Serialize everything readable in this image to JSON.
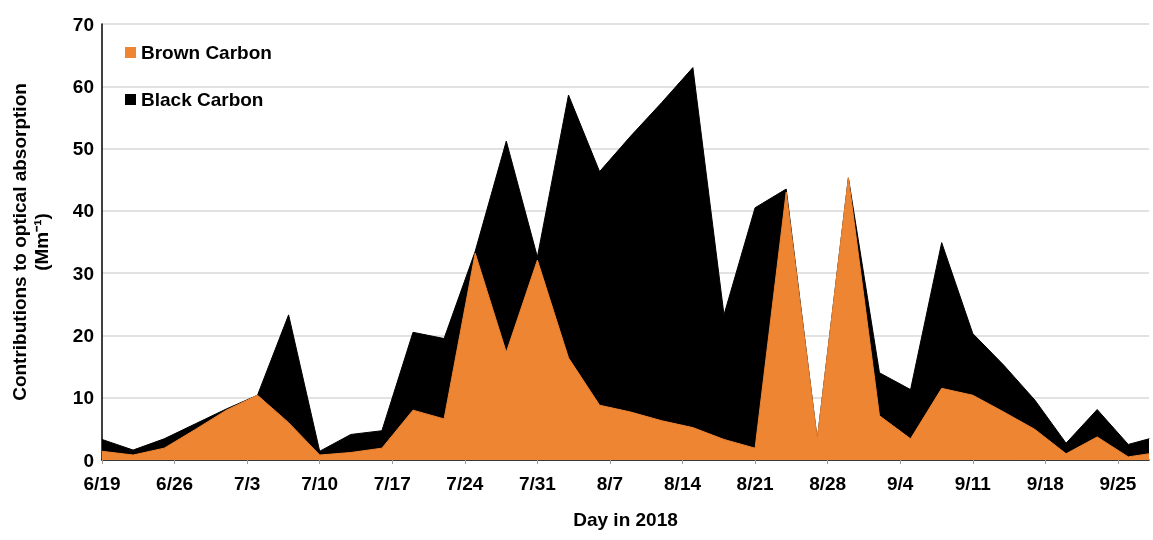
{
  "chart_data": {
    "type": "area",
    "xlabel": "Day in 2018",
    "ylabel": "Contributions to optical absorption\n(Mm⁻¹)",
    "x": [
      "--06-19",
      "--06-22",
      "--06-25",
      "--06-28",
      "--07-01",
      "--07-04",
      "--07-07",
      "--07-10",
      "--07-13",
      "--07-16",
      "--07-19",
      "--07-22",
      "--07-25",
      "--07-28",
      "--07-31",
      "--08-03",
      "--08-06",
      "--08-09",
      "--08-12",
      "--08-15",
      "--08-18",
      "--08-21",
      "--08-24",
      "--08-27",
      "--08-30",
      "--09-02",
      "--09-05",
      "--09-08",
      "--09-11",
      "--09-14",
      "--09-17",
      "--09-20",
      "--09-23",
      "--09-26",
      "--09-28"
    ],
    "series": [
      {
        "name": "Brown Carbon",
        "color": "#ee8533",
        "values": [
          1.4,
          0.8,
          1.9,
          4.9,
          8.0,
          10.4,
          6.0,
          0.8,
          1.2,
          1.9,
          8.0,
          6.6,
          33.2,
          17.3,
          32.1,
          16.4,
          8.8,
          7.7,
          6.3,
          5.2,
          3.3,
          1.9,
          43,
          3.3,
          45.3,
          7.1,
          3.4,
          11.5,
          10.4,
          7.7,
          4.9,
          1.0,
          3.7,
          0.5,
          1.0
        ]
      },
      {
        "name": "Black Carbon",
        "color": "#000000",
        "values": [
          3.3,
          1.6,
          3.4,
          5.8,
          8.2,
          10.4,
          23.3,
          1.4,
          4.1,
          4.7,
          20.5,
          19.5,
          33.5,
          51.2,
          32.6,
          58.6,
          46.3,
          52,
          57.4,
          63.0,
          23.3,
          40.5,
          43.5,
          3.3,
          45.3,
          14.0,
          11.3,
          34.9,
          20.3,
          15.2,
          9.6,
          2.7,
          8.1,
          2.5,
          3.4
        ]
      }
    ],
    "xlim": [
      "--06-19",
      "--09-28"
    ],
    "xticks": [
      {
        "value": "--06-19",
        "label": "6/19"
      },
      {
        "value": "--06-26",
        "label": "6/26"
      },
      {
        "value": "--07-03",
        "label": "7/3"
      },
      {
        "value": "--07-10",
        "label": "7/10"
      },
      {
        "value": "--07-17",
        "label": "7/17"
      },
      {
        "value": "--07-24",
        "label": "7/24"
      },
      {
        "value": "--07-31",
        "label": "7/31"
      },
      {
        "value": "--08-07",
        "label": "8/7"
      },
      {
        "value": "--08-14",
        "label": "8/14"
      },
      {
        "value": "--08-21",
        "label": "8/21"
      },
      {
        "value": "--08-28",
        "label": "8/28"
      },
      {
        "value": "--09-04",
        "label": "9/4"
      },
      {
        "value": "--09-11",
        "label": "9/11"
      },
      {
        "value": "--09-18",
        "label": "9/18"
      },
      {
        "value": "--09-25",
        "label": "9/25"
      }
    ],
    "ylim": [
      0,
      70
    ],
    "yticks": [
      0,
      10,
      20,
      30,
      40,
      50,
      60,
      70
    ],
    "grid": "y",
    "legend": "top left",
    "marker": "none"
  }
}
